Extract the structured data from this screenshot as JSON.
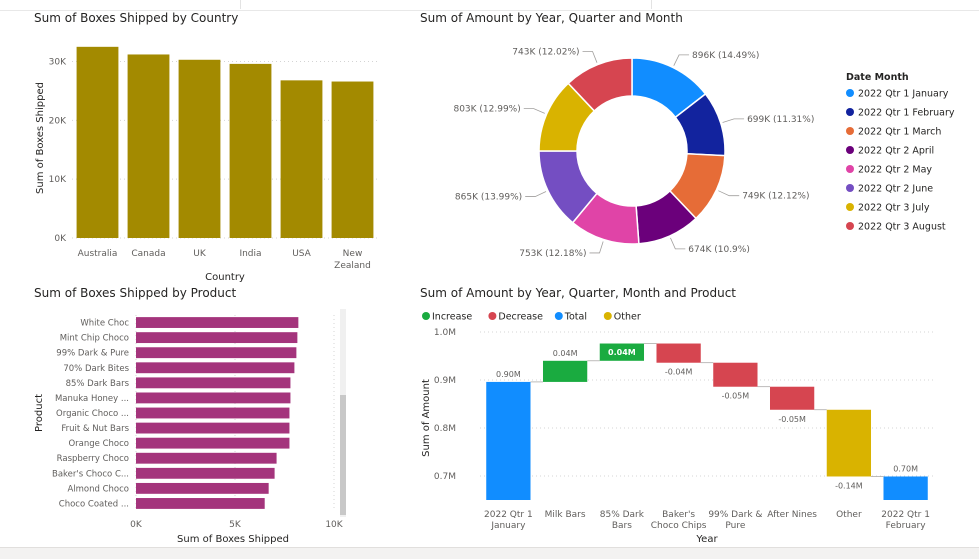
{
  "country_chart": {
    "title": "Sum of Boxes Shipped by Country",
    "chart_data": {
      "type": "bar",
      "categories": [
        "Australia",
        "Canada",
        "UK",
        "India",
        "USA",
        "New Zealand"
      ],
      "values": [
        32500,
        31200,
        30300,
        29600,
        26800,
        26600
      ],
      "xlabel": "Country",
      "ylabel": "Sum of Boxes Shipped",
      "ylim": [
        0,
        34000
      ],
      "yticks": [
        {
          "v": 0,
          "label": "0K"
        },
        {
          "v": 10000,
          "label": "10K"
        },
        {
          "v": 20000,
          "label": "20K"
        },
        {
          "v": 30000,
          "label": "30K"
        }
      ],
      "color": "#a38a00",
      "grid": true
    }
  },
  "donut_chart": {
    "title": "Sum of Amount by Year, Quarter and Month",
    "chart_data": {
      "type": "pie",
      "legend_title": "Date Month",
      "legend_position": "right",
      "slices": [
        {
          "name": "2022 Qtr 1 January",
          "value": 896,
          "label": "896K (14.49%)",
          "color": "#118dff"
        },
        {
          "name": "2022 Qtr 1 February",
          "value": 699,
          "label": "699K (11.31%)",
          "color": "#12239e"
        },
        {
          "name": "2022 Qtr 1 March",
          "value": 749,
          "label": "749K (12.12%)",
          "color": "#e66c37"
        },
        {
          "name": "2022 Qtr 2 April",
          "value": 674,
          "label": "674K (10.9%)",
          "color": "#6b007b"
        },
        {
          "name": "2022 Qtr 2 May",
          "value": 753,
          "label": "753K (12.18%)",
          "color": "#e044a7"
        },
        {
          "name": "2022 Qtr 2 June",
          "value": 865,
          "label": "865K (13.99%)",
          "color": "#744ec2"
        },
        {
          "name": "2022 Qtr 3 July",
          "value": 803,
          "label": "803K (12.99%)",
          "color": "#d9b300"
        },
        {
          "name": "2022 Qtr 3 August",
          "value": 743,
          "label": "743K (12.02%)",
          "color": "#d64550"
        }
      ]
    }
  },
  "product_chart": {
    "title": "Sum of Boxes Shipped by Product",
    "chart_data": {
      "type": "bar",
      "orientation": "horizontal",
      "categories": [
        "White Choc",
        "Mint Chip Choco",
        "99% Dark & Pure",
        "70% Dark Bites",
        "85% Dark Bars",
        "Manuka Honey ...",
        "Organic Choco ...",
        "Fruit & Nut Bars",
        "Orange Choco",
        "Raspberry Choco",
        "Baker's Choco C...",
        "Almond Choco",
        "Choco Coated ..."
      ],
      "values": [
        8200,
        8150,
        8100,
        8000,
        7800,
        7800,
        7750,
        7750,
        7750,
        7100,
        7000,
        6700,
        6500
      ],
      "xlabel": "Sum of Boxes Shipped",
      "ylabel": "Product",
      "xlim": [
        0,
        10000
      ],
      "xticks": [
        {
          "v": 0,
          "label": "0K"
        },
        {
          "v": 5000,
          "label": "5K"
        },
        {
          "v": 10000,
          "label": "10K"
        }
      ],
      "color": "#a4347c",
      "grid": true
    }
  },
  "waterfall_chart": {
    "title": "Sum of Amount by Year, Quarter, Month and Product",
    "chart_data": {
      "type": "bar",
      "subtype": "waterfall",
      "legend": [
        {
          "name": "Increase",
          "color": "#1aab40"
        },
        {
          "name": "Decrease",
          "color": "#d64550"
        },
        {
          "name": "Total",
          "color": "#118dff"
        },
        {
          "name": "Other",
          "color": "#d9b300"
        }
      ],
      "legend_position": "top-left",
      "xlabel": "Year",
      "ylabel": "Sum of Amount",
      "ylim": [
        0.65,
        1.0
      ],
      "yticks": [
        {
          "v": 0.7,
          "label": "0.7M"
        },
        {
          "v": 0.8,
          "label": "0.8M"
        },
        {
          "v": 0.9,
          "label": "0.9M"
        },
        {
          "v": 1.0,
          "label": "1.0M"
        }
      ],
      "steps": [
        {
          "category": [
            "2022 Qtr 1",
            "January"
          ],
          "start": 0.65,
          "end": 0.896,
          "kind": "Total",
          "label": "0.90M"
        },
        {
          "category": [
            "Milk Bars"
          ],
          "start": 0.896,
          "end": 0.94,
          "kind": "Increase",
          "label": "0.04M"
        },
        {
          "category": [
            "85% Dark",
            "Bars"
          ],
          "start": 0.94,
          "end": 0.976,
          "kind": "Increase",
          "label": "0.04M"
        },
        {
          "category": [
            "Baker's",
            "Choco Chips"
          ],
          "start": 0.976,
          "end": 0.936,
          "kind": "Decrease",
          "label": "-0.04M"
        },
        {
          "category": [
            "99% Dark &",
            "Pure"
          ],
          "start": 0.936,
          "end": 0.886,
          "kind": "Decrease",
          "label": "-0.05M"
        },
        {
          "category": [
            "After Nines"
          ],
          "start": 0.886,
          "end": 0.838,
          "kind": "Decrease",
          "label": "-0.05M"
        },
        {
          "category": [
            "Other"
          ],
          "start": 0.838,
          "end": 0.699,
          "kind": "Other",
          "label": "-0.14M"
        },
        {
          "category": [
            "2022 Qtr 1",
            "February"
          ],
          "start": 0.65,
          "end": 0.699,
          "kind": "Total",
          "label": "0.70M"
        }
      ]
    }
  }
}
